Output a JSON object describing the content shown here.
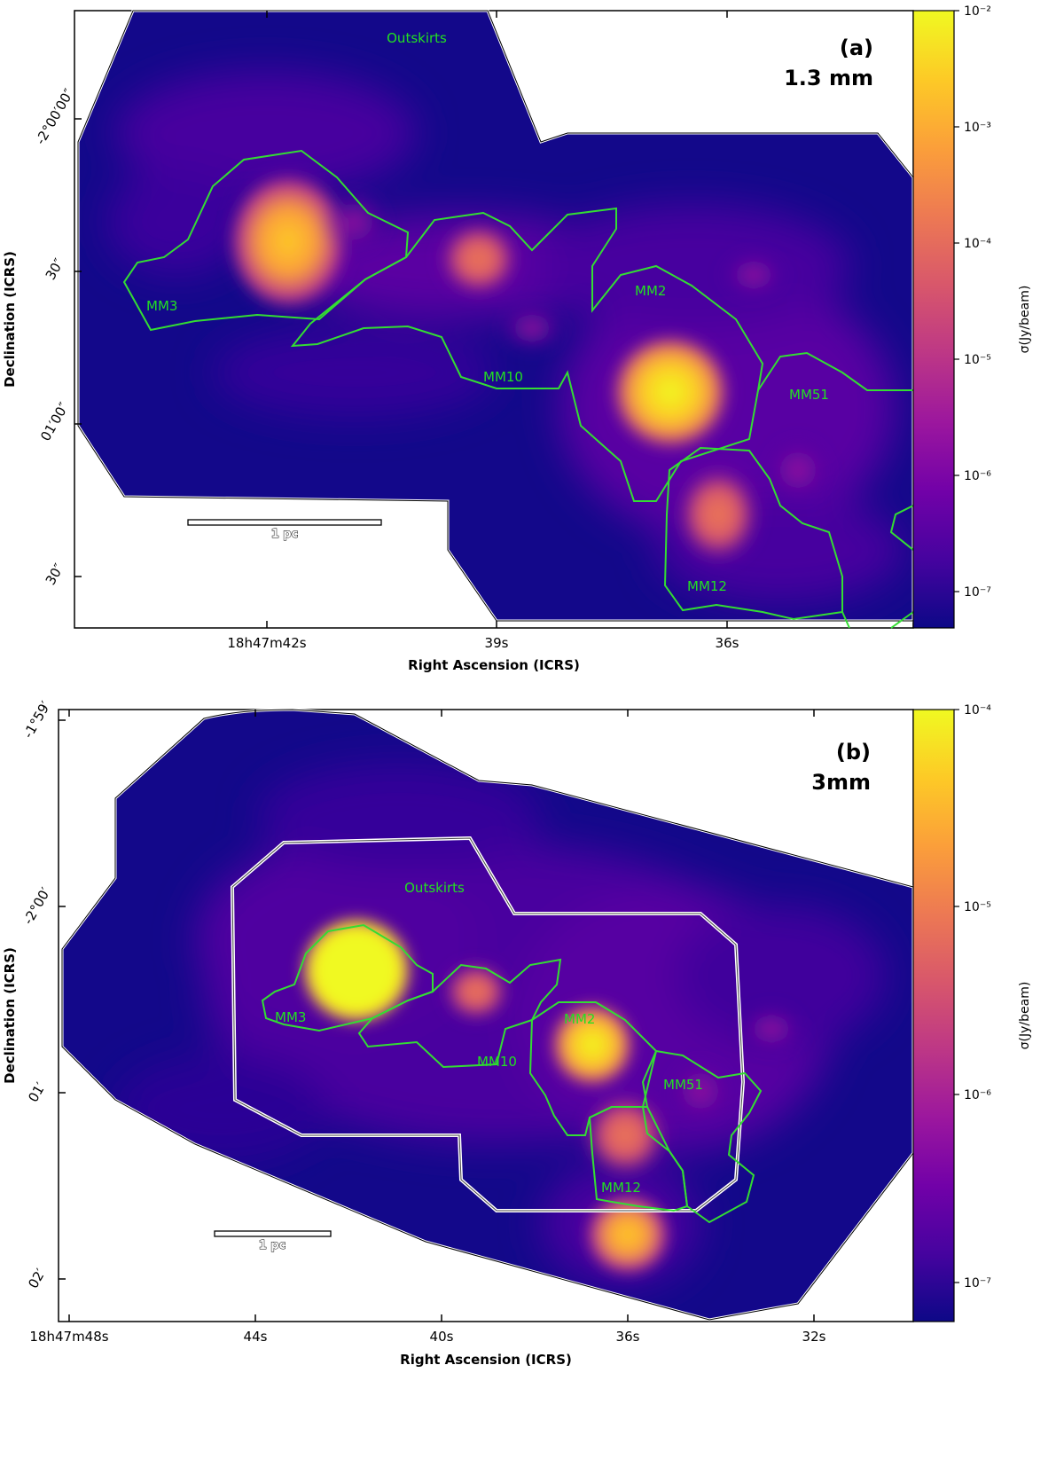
{
  "colorbar_cmap": [
    "#0d0887",
    "#46039f",
    "#7201a8",
    "#9c179e",
    "#bd3786",
    "#d8576b",
    "#ed7953",
    "#fb9f3a",
    "#fdca26",
    "#f0f921"
  ],
  "chart_data": [
    {
      "type": "heatmap",
      "panel": "(a)",
      "band": "1.3 mm",
      "xlabel": "Right Ascension (ICRS)",
      "ylabel": "Declination (ICRS)",
      "xticks": [
        "18h47m42s",
        "39s",
        "36s"
      ],
      "yticks": [
        "-2°00′00″",
        "30″",
        "01′00″",
        "30″"
      ],
      "colorbar_label": "σ(Jy/beam)",
      "colorbar_scale": "log",
      "colorbar_ticks": [
        "10⁻²",
        "10⁻³",
        "10⁻⁴",
        "10⁻⁵",
        "10⁻⁶",
        "10⁻⁷"
      ],
      "colorbar_range": [
        5e-08,
        0.01
      ],
      "regions": [
        "Outskirts",
        "MM3",
        "MM2",
        "MM10",
        "MM51",
        "MM12"
      ],
      "scalebar": "1 pc"
    },
    {
      "type": "heatmap",
      "panel": "(b)",
      "band": "3mm",
      "xlabel": "Right Ascension (ICRS)",
      "ylabel": "Declination (ICRS)",
      "xticks": [
        "18h47m48s",
        "44s",
        "40s",
        "36s",
        "32s"
      ],
      "yticks": [
        "-1°59′",
        "-2°00′",
        "01′",
        "02′"
      ],
      "colorbar_label": "σ(Jy/beam)",
      "colorbar_scale": "log",
      "colorbar_ticks": [
        "10⁻⁴",
        "10⁻⁵",
        "10⁻⁶",
        "10⁻⁷"
      ],
      "colorbar_range": [
        5e-08,
        0.0001
      ],
      "regions": [
        "Outskirts",
        "MM3",
        "MM2",
        "MM10",
        "MM51",
        "MM12"
      ],
      "scalebar": "1 pc"
    }
  ]
}
